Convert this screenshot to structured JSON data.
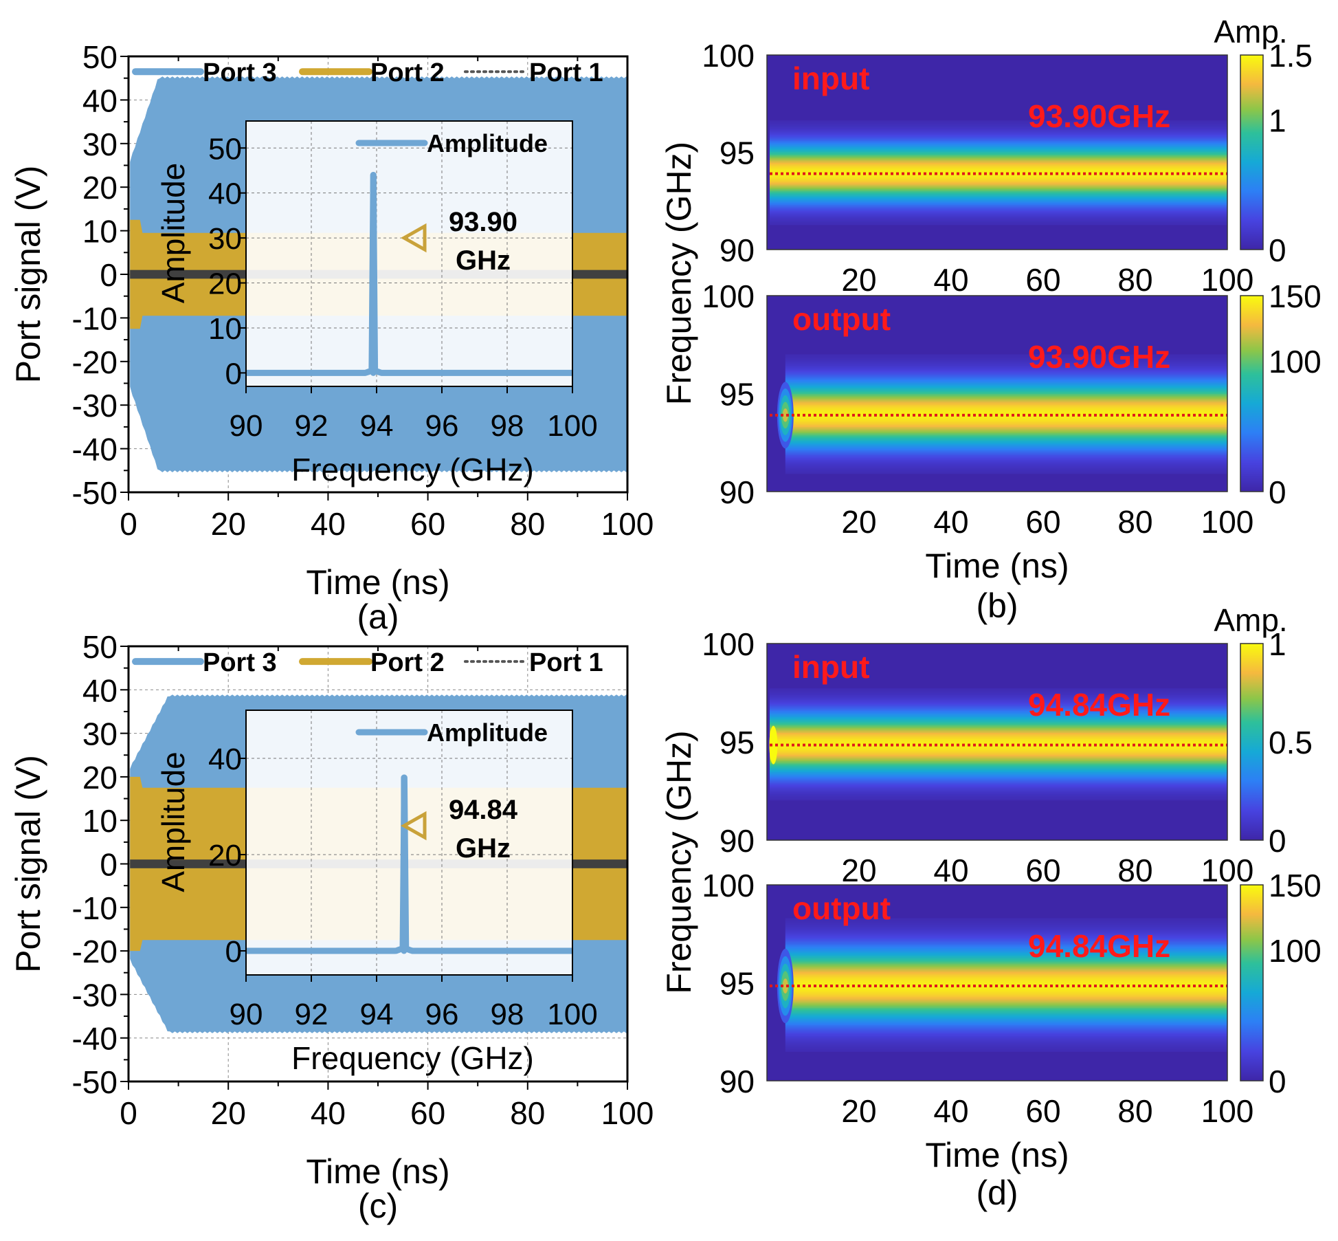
{
  "chart_data": [
    {
      "panel": "a",
      "type": "area",
      "caption": "(a)",
      "xlabel": "Time (ns)",
      "ylabel": "Port signal (V)",
      "xlim": [
        0,
        100
      ],
      "ylim": [
        -50,
        50
      ],
      "xticks": [
        0,
        20,
        40,
        60,
        80,
        100
      ],
      "yticks": [
        50,
        40,
        30,
        20,
        10,
        0,
        -10,
        -20,
        -30,
        -40,
        -50
      ],
      "grid": true,
      "legend_position": "top",
      "legend": [
        {
          "name": "Port 3",
          "style": "solid",
          "color": "#6fa6d4"
        },
        {
          "name": "Port 2",
          "style": "solid",
          "color": "#d0a832"
        },
        {
          "name": "Port 1",
          "style": "dotted",
          "color": "#555555"
        }
      ],
      "series": [
        {
          "name": "Port 3",
          "envelope_amplitude": 45,
          "rise_time_ns": 6,
          "color": "#6fa6d4"
        },
        {
          "name": "Port 2",
          "envelope_amplitude": 9.5,
          "initial_peak": 12.5,
          "color": "#d0a832"
        },
        {
          "name": "Port 1",
          "envelope_amplitude": 1,
          "color": "#404040"
        }
      ],
      "inset": {
        "type": "line",
        "xlabel": "Frequency (GHz)",
        "ylabel": "Amplitude",
        "xlim": [
          90,
          100
        ],
        "ylim": [
          -3,
          56
        ],
        "xticks": [
          90,
          92,
          94,
          96,
          98,
          100
        ],
        "yticks": [
          50,
          40,
          30,
          20,
          10,
          0
        ],
        "legend": "Amplitude",
        "peak_frequency": 93.9,
        "peak_amplitude": 44,
        "baseline": 0,
        "annotation_value": "93.90",
        "annotation_unit": "GHz",
        "marker_color": "#c9a23a"
      }
    },
    {
      "panel": "b",
      "type": "heatmap",
      "caption": "(b)",
      "xlabel": "Time (ns)",
      "ylabel": "Frequency (GHz)",
      "colorbar_title": "Amp.",
      "subplots": [
        {
          "label": "input",
          "annotation": "93.90GHz",
          "center_frequency": 93.9,
          "xlim": [
            0,
            100
          ],
          "ylim": [
            90,
            100
          ],
          "xticks": [
            20,
            40,
            60,
            80,
            100
          ],
          "yticks": [
            100,
            95,
            90
          ],
          "colorbar_range": [
            0,
            1.5
          ],
          "colorbar_ticks": [
            "1.5",
            "1",
            "0"
          ],
          "band_halfwidth_ghz": 1.5,
          "onset": "steady"
        },
        {
          "label": "output",
          "annotation": "93.90GHz",
          "center_frequency": 93.9,
          "xlim": [
            0,
            100
          ],
          "ylim": [
            90,
            100
          ],
          "xticks": [
            20,
            40,
            60,
            80,
            100
          ],
          "yticks": [
            100,
            95,
            90
          ],
          "colorbar_range": [
            0,
            150
          ],
          "colorbar_ticks": [
            "150",
            "100",
            "0"
          ],
          "band_halfwidth_ghz": 1.7,
          "onset": "rise"
        }
      ]
    },
    {
      "panel": "c",
      "type": "area",
      "caption": "(c)",
      "xlabel": "Time (ns)",
      "ylabel": "Port signal (V)",
      "xlim": [
        0,
        100
      ],
      "ylim": [
        -50,
        50
      ],
      "xticks": [
        0,
        20,
        40,
        60,
        80,
        100
      ],
      "yticks": [
        50,
        40,
        30,
        20,
        10,
        0,
        -10,
        -20,
        -30,
        -40,
        -50
      ],
      "grid": true,
      "legend_position": "top",
      "legend": [
        {
          "name": "Port 3",
          "style": "solid",
          "color": "#6fa6d4"
        },
        {
          "name": "Port 2",
          "style": "solid",
          "color": "#d0a832"
        },
        {
          "name": "Port 1",
          "style": "dotted",
          "color": "#555555"
        }
      ],
      "series": [
        {
          "name": "Port 3",
          "envelope_amplitude": 38.5,
          "rise_time_ns": 8,
          "color": "#6fa6d4"
        },
        {
          "name": "Port 2",
          "envelope_amplitude": 17.5,
          "initial_peak": 20,
          "color": "#d0a832"
        },
        {
          "name": "Port 1",
          "envelope_amplitude": 1,
          "color": "#404040"
        }
      ],
      "inset": {
        "type": "line",
        "xlabel": "Frequency (GHz)",
        "ylabel": "Amplitude",
        "xlim": [
          90,
          100
        ],
        "ylim": [
          -5,
          50
        ],
        "xticks": [
          90,
          92,
          94,
          96,
          98,
          100
        ],
        "yticks": [
          40,
          20,
          0
        ],
        "legend": "Amplitude",
        "peak_frequency": 94.84,
        "peak_amplitude": 36,
        "baseline": 0,
        "annotation_value": "94.84",
        "annotation_unit": "GHz",
        "marker_color": "#c9a23a"
      }
    },
    {
      "panel": "d",
      "type": "heatmap",
      "caption": "(d)",
      "xlabel": "Time (ns)",
      "ylabel": "Frequency (GHz)",
      "colorbar_title": "Amp.",
      "subplots": [
        {
          "label": "input",
          "annotation": "94.84GHz",
          "center_frequency": 94.84,
          "xlim": [
            0,
            100
          ],
          "ylim": [
            90,
            100
          ],
          "xticks": [
            20,
            40,
            60,
            80,
            100
          ],
          "yticks": [
            100,
            95,
            90
          ],
          "colorbar_range": [
            0,
            1
          ],
          "colorbar_ticks": [
            "1",
            "0.5",
            "0"
          ],
          "band_halfwidth_ghz": 1.6,
          "onset": "spike"
        },
        {
          "label": "output",
          "annotation": "94.84GHz",
          "center_frequency": 94.84,
          "xlim": [
            0,
            100
          ],
          "ylim": [
            90,
            100
          ],
          "xticks": [
            20,
            40,
            60,
            80,
            100
          ],
          "yticks": [
            100,
            95,
            90
          ],
          "colorbar_range": [
            0,
            150
          ],
          "colorbar_ticks": [
            "150",
            "100",
            "0"
          ],
          "band_halfwidth_ghz": 1.9,
          "onset": "rise"
        }
      ]
    }
  ]
}
